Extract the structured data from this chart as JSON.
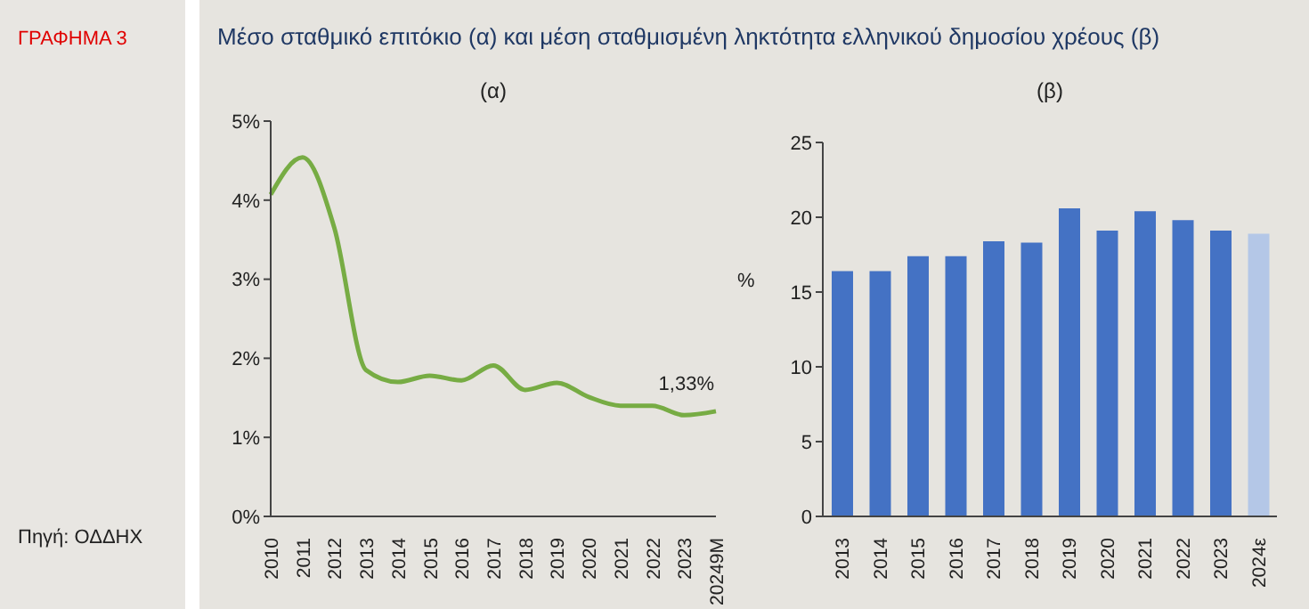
{
  "chart_data": [
    {
      "type": "line",
      "title": "(α)",
      "annotations": [
        "ΓΡΑΦΗΜΑ 3",
        "Μέσο σταθμικό επιτόκιο (α) και μέση σταθμισμένη ληκτότητα ελληνικού δημοσίου χρέους (β)",
        "Πηγή: ΟΔΔΗΧ"
      ],
      "categories": [
        "2010",
        "2011",
        "2012",
        "2013",
        "2014",
        "2015",
        "2016",
        "2017",
        "2018",
        "2019",
        "2020",
        "2021",
        "2022",
        "2023",
        "20249Μ"
      ],
      "series": [
        {
          "color": "#77ac44",
          "values": [
            4.07,
            4.54,
            3.65,
            1.85,
            1.7,
            1.78,
            1.72,
            1.91,
            1.6,
            1.69,
            1.51,
            1.4,
            1.4,
            1.28,
            1.33
          ],
          "value_labels": [
            null,
            null,
            null,
            null,
            null,
            null,
            null,
            null,
            null,
            null,
            null,
            null,
            null,
            null,
            "1,33%"
          ]
        }
      ],
      "ylim": [
        0,
        5
      ],
      "yticks": [
        {
          "value": 0,
          "label": "0%"
        },
        {
          "value": 1,
          "label": "1%"
        },
        {
          "value": 2,
          "label": "2%"
        },
        {
          "value": 3,
          "label": "3%"
        },
        {
          "value": 4,
          "label": "4%"
        },
        {
          "value": 5,
          "label": "5%"
        }
      ],
      "grid": false,
      "legend": false,
      "marker": "none",
      "line_style": "solid"
    },
    {
      "type": "bar",
      "title": "(β)",
      "ylabel": "%",
      "categories": [
        "2013",
        "2014",
        "2015",
        "2016",
        "2017",
        "2018",
        "2019",
        "2020",
        "2021",
        "2022",
        "2023",
        "2024ε"
      ],
      "values": [
        16.4,
        16.4,
        17.4,
        17.4,
        18.4,
        18.3,
        20.6,
        19.1,
        20.4,
        19.8,
        19.1,
        18.9
      ],
      "colors": [
        "#4472c4",
        "#4472c4",
        "#4472c4",
        "#4472c4",
        "#4472c4",
        "#4472c4",
        "#4472c4",
        "#4472c4",
        "#4472c4",
        "#4472c4",
        "#4472c4",
        "#b4c7e7"
      ],
      "ylim": [
        0,
        25
      ],
      "yticks": [
        0,
        5,
        10,
        15,
        20,
        25
      ],
      "grid": false,
      "legend": false
    }
  ]
}
